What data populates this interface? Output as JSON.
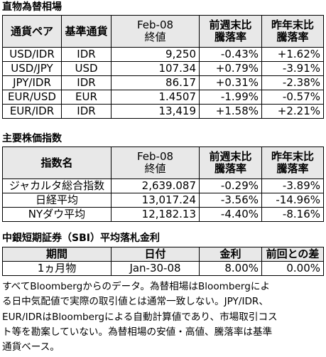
{
  "fx": {
    "title": "直物為替相場",
    "headers": {
      "pair": "通貨ペア",
      "base": "基準通貨",
      "date": "Feb-08",
      "close": "終値",
      "wk_top": "前週末比",
      "wk_bottom": "騰落率",
      "yr_top": "昨年末比",
      "yr_bottom": "騰落率"
    },
    "rows": [
      {
        "pair": "USD/IDR",
        "base": "IDR",
        "close": "9,250",
        "wk": "-0.43%",
        "yr": "+1.62%"
      },
      {
        "pair": "USD/JPY",
        "base": "USD",
        "close": "107.34",
        "wk": "+0.79%",
        "yr": "-3.91%"
      },
      {
        "pair": "JPY/IDR",
        "base": "IDR",
        "close": "86.17",
        "wk": "+0.31%",
        "yr": "-2.38%"
      },
      {
        "pair": "EUR/USD",
        "base": "EUR",
        "close": "1.4507",
        "wk": "-1.99%",
        "yr": "-0.57%"
      },
      {
        "pair": "EUR/IDR",
        "base": "IDR",
        "close": "13,419",
        "wk": "+1.58%",
        "yr": "+2.21%"
      }
    ]
  },
  "stocks": {
    "title": "主要株価指数",
    "headers": {
      "name": "指数名",
      "date": "Feb-08",
      "close": "終値",
      "wk_top": "前週末比",
      "wk_bottom": "騰落率",
      "yr_top": "昨年末比",
      "yr_bottom": "騰落率"
    },
    "rows": [
      {
        "name": "ジャカルタ総合指数",
        "close": "2,639.087",
        "wk": "-0.29%",
        "yr": "-3.89%"
      },
      {
        "name": "日経平均",
        "close": "13,017.24",
        "wk": "-3.56%",
        "yr": "-14.96%"
      },
      {
        "name": "NYダウ平均",
        "close": "12,182.13",
        "wk": "-4.40%",
        "yr": "-8.16%"
      }
    ]
  },
  "sbi": {
    "title": "中銀短期証券（SBI）平均落札金利",
    "headers": {
      "period": "期間",
      "date": "日付",
      "rate": "金利",
      "diff": "前回との差"
    },
    "row": {
      "period": "1ヵ月物",
      "date": "Jan-30-08",
      "rate": "8.00%",
      "diff": "0.00%"
    }
  },
  "note": {
    "lines": [
      "すべてBloombergからのデータ。為替相場はBloombergによ",
      "る日中気配値で実際の取引値とは通常一致しない。JPY/IDR、",
      "EUR/IDRはBloombergによる自動計算値であり、市場取引コス",
      "ト等を勘案していない。為替相場の安値・高値、騰落率は基準",
      "通貨ベース。"
    ]
  }
}
